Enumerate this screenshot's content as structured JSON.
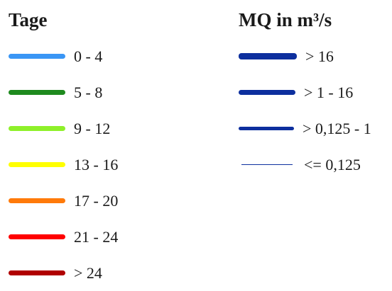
{
  "tage_legend": {
    "title": "Tage",
    "items": [
      {
        "label": "0 - 4",
        "color": "#3a96f5"
      },
      {
        "label": "5 - 8",
        "color": "#1e8a1e"
      },
      {
        "label": "9 - 12",
        "color": "#8ef02a"
      },
      {
        "label": "13 - 16",
        "color": "#ffff00"
      },
      {
        "label": "17 - 20",
        "color": "#ff7a0a"
      },
      {
        "label": "21 - 24",
        "color": "#ff0000"
      },
      {
        "label": "> 24",
        "color": "#b00000"
      }
    ]
  },
  "mq_legend": {
    "title": "MQ in m³/s",
    "line_color": "#0d2f9e",
    "items": [
      {
        "label": "> 16",
        "weight": "thickest"
      },
      {
        "label": "> 1 - 16",
        "weight": "thick"
      },
      {
        "label": "> 0,125 - 1",
        "weight": "medium"
      },
      {
        "label": "<= 0,125",
        "weight": "thin"
      }
    ]
  }
}
